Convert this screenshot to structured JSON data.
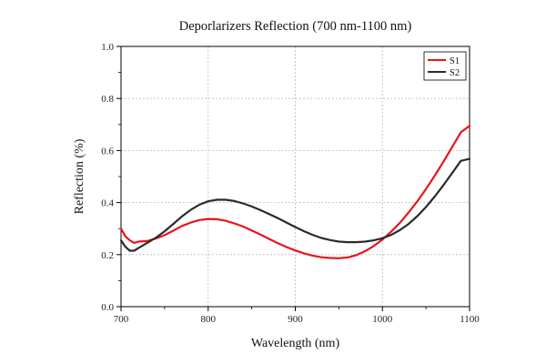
{
  "chart_data": {
    "type": "line",
    "title": "Deporlarizers Reflection (700 nm-1100 nm)",
    "xlabel": "Wavelength (nm)",
    "ylabel": "Reflection (%)",
    "xlim": [
      700,
      1100
    ],
    "ylim": [
      0.0,
      1.0
    ],
    "xticks": [
      "700",
      "800",
      "900",
      "1000",
      "1100"
    ],
    "yticks": [
      "0.0",
      "0.2",
      "0.4",
      "0.6",
      "0.8",
      "1.0"
    ],
    "grid": true,
    "legend_position": "top-right",
    "series": [
      {
        "name": "S1",
        "color": "#e8141b",
        "x": [
          700,
          705,
          710,
          715,
          720,
          730,
          740,
          750,
          760,
          770,
          780,
          790,
          800,
          810,
          820,
          830,
          840,
          850,
          860,
          870,
          880,
          890,
          900,
          910,
          920,
          930,
          940,
          950,
          960,
          970,
          980,
          990,
          1000,
          1010,
          1020,
          1030,
          1040,
          1050,
          1060,
          1070,
          1080,
          1090,
          1100
        ],
        "y": [
          0.3,
          0.27,
          0.255,
          0.245,
          0.25,
          0.252,
          0.262,
          0.275,
          0.292,
          0.31,
          0.323,
          0.333,
          0.337,
          0.336,
          0.33,
          0.32,
          0.308,
          0.293,
          0.277,
          0.26,
          0.244,
          0.229,
          0.216,
          0.205,
          0.196,
          0.19,
          0.187,
          0.186,
          0.189,
          0.198,
          0.213,
          0.233,
          0.258,
          0.288,
          0.322,
          0.362,
          0.405,
          0.452,
          0.503,
          0.557,
          0.613,
          0.67,
          0.695
        ]
      },
      {
        "name": "S2",
        "color": "#2b2b2b",
        "x": [
          700,
          705,
          710,
          715,
          720,
          730,
          740,
          750,
          760,
          770,
          780,
          790,
          800,
          810,
          820,
          830,
          840,
          850,
          860,
          870,
          880,
          890,
          900,
          910,
          920,
          930,
          940,
          950,
          960,
          970,
          980,
          990,
          1000,
          1010,
          1020,
          1030,
          1040,
          1050,
          1060,
          1070,
          1080,
          1090,
          1100
        ],
        "y": [
          0.255,
          0.23,
          0.215,
          0.215,
          0.225,
          0.245,
          0.265,
          0.29,
          0.318,
          0.347,
          0.372,
          0.392,
          0.405,
          0.411,
          0.411,
          0.406,
          0.397,
          0.385,
          0.371,
          0.356,
          0.34,
          0.323,
          0.306,
          0.29,
          0.276,
          0.264,
          0.256,
          0.25,
          0.248,
          0.248,
          0.25,
          0.255,
          0.263,
          0.276,
          0.294,
          0.318,
          0.348,
          0.383,
          0.423,
          0.467,
          0.513,
          0.56,
          0.568
        ]
      }
    ]
  }
}
